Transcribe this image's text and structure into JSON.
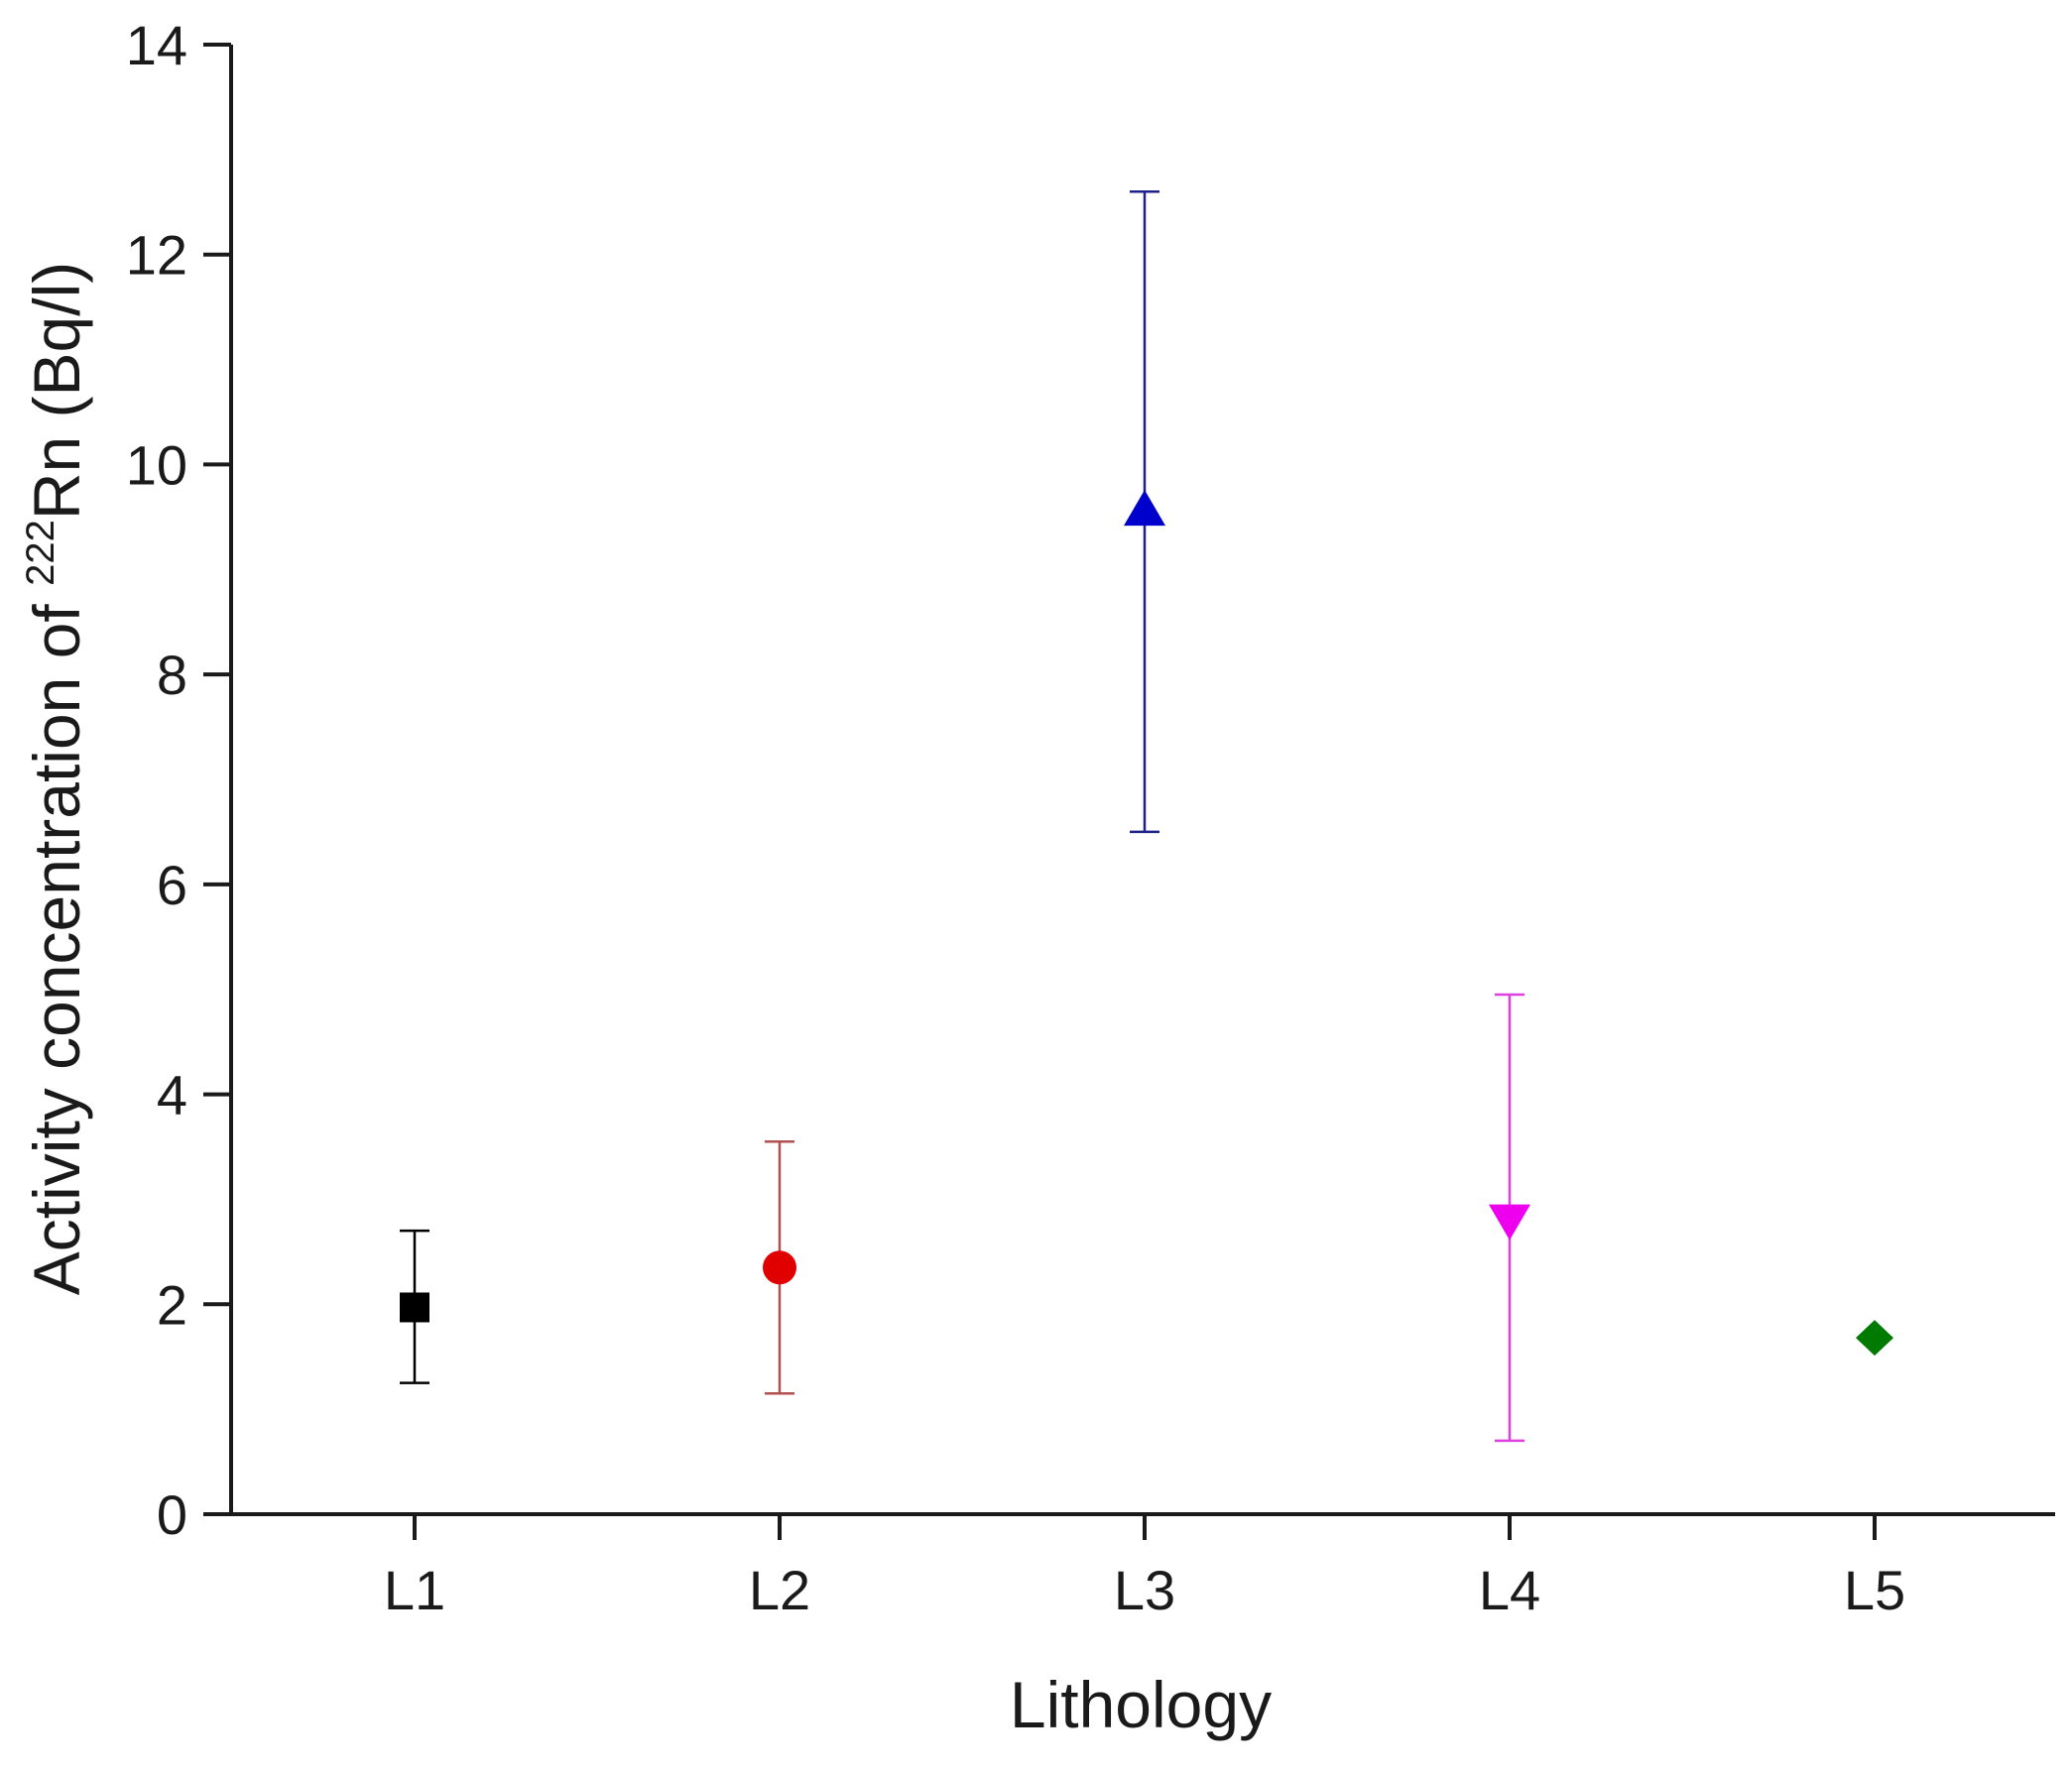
{
  "chart_data": {
    "type": "scatter",
    "title": "",
    "xlabel": "Lithology",
    "ylabel": {
      "prefix": "Activity concentration of ",
      "superscript": "222",
      "suffix": "Rn (Bq/l)"
    },
    "categories": [
      "L1",
      "L2",
      "L3",
      "L4",
      "L5"
    ],
    "ylim": [
      0,
      14
    ],
    "yticks": [
      "0",
      "2",
      "4",
      "6",
      "8",
      "10",
      "12",
      "14"
    ],
    "grid": false,
    "points": [
      {
        "category": "L1",
        "value": 1.97,
        "lower": 1.25,
        "upper": 2.7,
        "marker": "square",
        "color": "#000000",
        "error_color": "#000000"
      },
      {
        "category": "L2",
        "value": 2.35,
        "lower": 1.15,
        "upper": 3.55,
        "marker": "circle",
        "color": "#e00000",
        "error_color": "#b05050"
      },
      {
        "category": "L3",
        "value": 9.55,
        "lower": 6.5,
        "upper": 12.6,
        "marker": "triangle-up",
        "color": "#0000cc",
        "error_color": "#20208a"
      },
      {
        "category": "L4",
        "value": 2.8,
        "lower": 0.7,
        "upper": 4.95,
        "marker": "triangle-down",
        "color": "#ee00ee",
        "error_color": "#e040e0"
      },
      {
        "category": "L5",
        "value": 1.68,
        "lower": null,
        "upper": null,
        "marker": "diamond",
        "color": "#007a00",
        "error_color": "#007a00"
      }
    ]
  }
}
